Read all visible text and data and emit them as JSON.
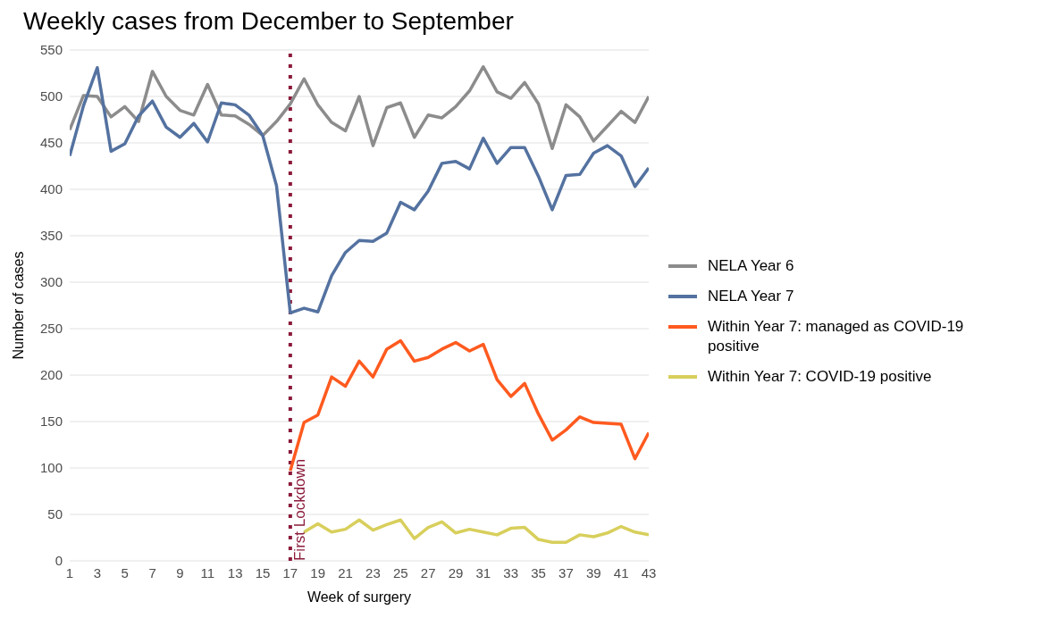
{
  "chart_data": {
    "type": "line",
    "title": "Weekly cases from December to September",
    "xlabel": "Week of surgery",
    "ylabel": "Number of cases",
    "x": [
      1,
      2,
      3,
      4,
      5,
      6,
      7,
      8,
      9,
      10,
      11,
      12,
      13,
      14,
      15,
      16,
      17,
      18,
      19,
      20,
      21,
      22,
      23,
      24,
      25,
      26,
      27,
      28,
      29,
      30,
      31,
      32,
      33,
      34,
      35,
      36,
      37,
      38,
      39,
      40,
      41,
      42,
      43
    ],
    "series": [
      {
        "name": "NELA Year 6",
        "color": "#8c8c8c",
        "values": [
          464,
          501,
          500,
          478,
          489,
          473,
          527,
          500,
          485,
          480,
          513,
          480,
          479,
          470,
          458,
          473,
          492,
          519,
          491,
          472,
          463,
          500,
          447,
          488,
          493,
          456,
          480,
          477,
          489,
          506,
          532,
          505,
          498,
          515,
          492,
          444,
          491,
          478,
          452,
          468,
          484,
          472,
          500
        ]
      },
      {
        "name": "NELA Year 7",
        "color": "#5472a0",
        "values": [
          436,
          490,
          531,
          441,
          449,
          479,
          495,
          467,
          456,
          471,
          451,
          493,
          491,
          480,
          458,
          404,
          267,
          272,
          268,
          307,
          332,
          345,
          344,
          353,
          386,
          378,
          398,
          428,
          430,
          422,
          455,
          428,
          445,
          445,
          414,
          378,
          415,
          416,
          439,
          447,
          436,
          403,
          423
        ]
      },
      {
        "name": "Within Year 7: managed as COVID-19 positive",
        "color": "#ff5a1f",
        "values": [
          null,
          null,
          null,
          null,
          null,
          null,
          null,
          null,
          null,
          null,
          null,
          null,
          null,
          null,
          null,
          null,
          97,
          149,
          157,
          198,
          188,
          215,
          198,
          228,
          237,
          215,
          219,
          228,
          235,
          226,
          233,
          195,
          177,
          191,
          158,
          130,
          141,
          155,
          149,
          148,
          147,
          110,
          138
        ]
      },
      {
        "name": "Within Year 7: COVID-19 positive",
        "color": "#d8cf5c",
        "values": [
          null,
          null,
          null,
          null,
          null,
          null,
          null,
          null,
          null,
          null,
          null,
          null,
          null,
          null,
          null,
          null,
          null,
          31,
          40,
          31,
          34,
          44,
          33,
          39,
          44,
          24,
          36,
          42,
          30,
          34,
          31,
          28,
          35,
          36,
          23,
          20,
          20,
          28,
          26,
          30,
          37,
          31,
          28
        ]
      }
    ],
    "xlim": [
      1,
      43
    ],
    "xticks": [
      1,
      3,
      5,
      7,
      9,
      11,
      13,
      15,
      17,
      19,
      21,
      23,
      25,
      27,
      29,
      31,
      33,
      35,
      37,
      39,
      41,
      43
    ],
    "ylim": [
      0,
      550
    ],
    "yticks": [
      0,
      50,
      100,
      150,
      200,
      250,
      300,
      350,
      400,
      450,
      500,
      550
    ],
    "grid": "y",
    "legend": "right",
    "ref_lines": [
      {
        "axis": "x",
        "value": 17,
        "label": "First Lockdown",
        "color": "#8b1a3a",
        "line_style": "dotted"
      }
    ]
  }
}
